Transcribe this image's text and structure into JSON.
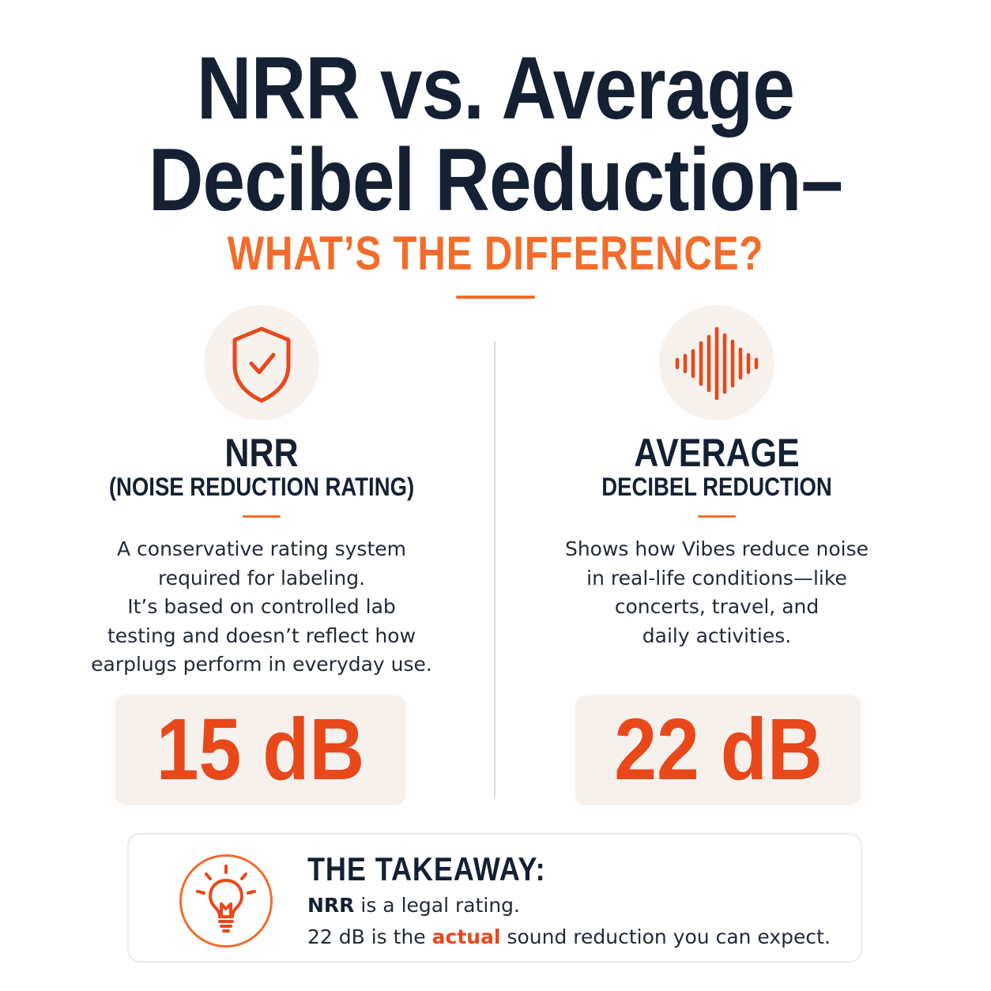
{
  "title": {
    "line1": "NRR vs. Average",
    "line2": "Decibel Reduction–",
    "subtitle": "WHAT’S THE DIFFERENCE?"
  },
  "colors": {
    "accent": "#f26c2b",
    "value": "#e8481a",
    "heading": "#152033",
    "panel": "#f7f1ed"
  },
  "left": {
    "icon": "shield-check-icon",
    "heading": "NRR",
    "subheading": "(NOISE REDUCTION RATING)",
    "description": [
      "A conservative rating system",
      "required for labeling.",
      "It’s based on controlled lab",
      "testing and doesn’t reflect how",
      "earplugs perform in everyday use."
    ],
    "value": "15 dB"
  },
  "right": {
    "icon": "sound-wave-icon",
    "heading": "AVERAGE",
    "subheading": "DECIBEL REDUCTION",
    "description": [
      "Shows how Vibes reduce noise",
      "in real-life conditions—like",
      "concerts, travel, and",
      "daily activities."
    ],
    "value": "22 dB"
  },
  "takeaway": {
    "icon": "lightbulb-icon",
    "title": "THE TAKEAWAY:",
    "line1_bold": "NRR",
    "line1_rest": " is a legal rating.",
    "line2_start": "22 dB is the ",
    "line2_accent": "actual",
    "line2_end": " sound reduction you can expect."
  }
}
